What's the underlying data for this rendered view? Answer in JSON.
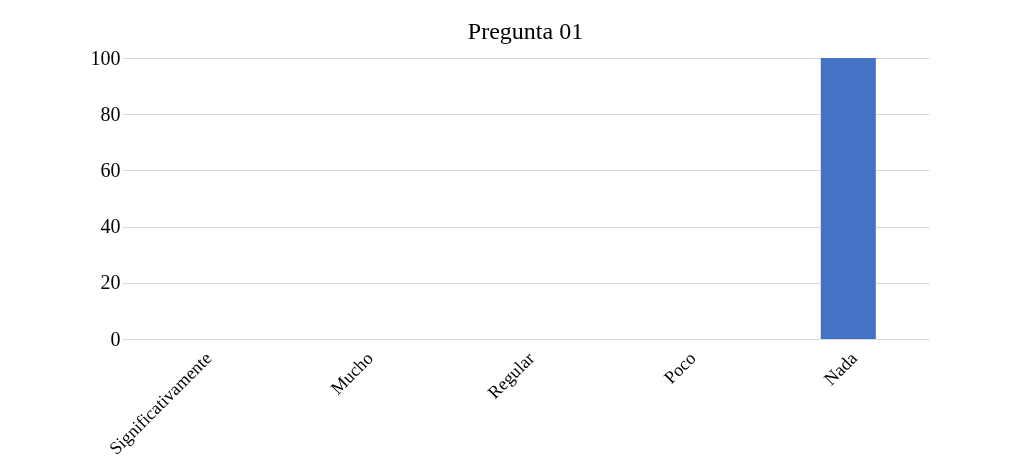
{
  "chart_data": {
    "type": "bar",
    "title": "Pregunta 01",
    "categories": [
      "Significativamente",
      "Mucho",
      "Regular",
      "Poco",
      "Nada"
    ],
    "values": [
      0,
      0,
      0,
      0,
      100
    ],
    "color": "#4472c4",
    "ylim": [
      0,
      100
    ],
    "yticks": [
      0,
      20,
      40,
      60,
      80,
      100
    ],
    "grid": "y"
  }
}
